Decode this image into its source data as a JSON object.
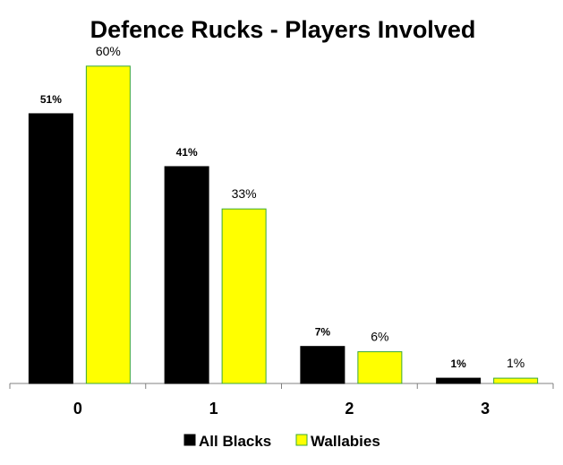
{
  "chart_data": {
    "type": "bar",
    "title": "Defence Rucks - Players Involved",
    "categories": [
      "0",
      "1",
      "2",
      "3"
    ],
    "series": [
      {
        "name": "All Blacks",
        "values": [
          51,
          41,
          7,
          1
        ],
        "labels": [
          "51%",
          "41%",
          "7%",
          "1%"
        ],
        "color": "#000000",
        "stroke": "#000000"
      },
      {
        "name": "Wallabies",
        "values": [
          60,
          33,
          6,
          1
        ],
        "labels": [
          "60%",
          "33%",
          "6%",
          "1%"
        ],
        "color": "#ffff00",
        "stroke": "#3aa83a"
      }
    ],
    "ylim": [
      0,
      62
    ],
    "grid": false,
    "legend_position": "bottom"
  }
}
